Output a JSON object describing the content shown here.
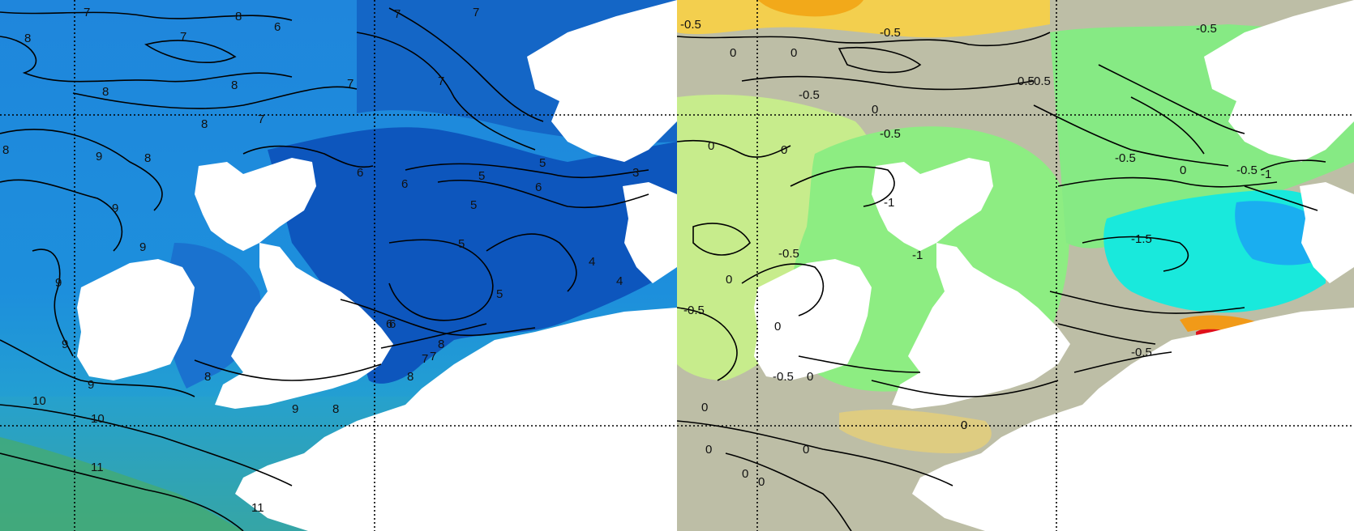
{
  "left_panel": {
    "colors": {
      "deep": "#0a4fb8",
      "mid": "#1f78d6",
      "light": "#2a9de0",
      "warm": "#3aa88a",
      "land": "#ffffff"
    },
    "contour_labels": [
      "7",
      "8",
      "8",
      "7",
      "6",
      "7",
      "8",
      "7",
      "7",
      "8",
      "8",
      "7",
      "8",
      "9",
      "8",
      "9",
      "9",
      "9",
      "7",
      "6",
      "6",
      "5",
      "5",
      "6",
      "4",
      "3",
      "5",
      "5",
      "4",
      "5",
      "6",
      "7",
      "8",
      "9",
      "8",
      "10",
      "11",
      "11",
      "8",
      "9",
      "6",
      "7",
      "8",
      "9",
      "10"
    ]
  },
  "right_panel": {
    "colors": {
      "gray": "#bfc0a8",
      "lightgreen": "#b6ec7a",
      "green": "#7ee57a",
      "cyan": "#13e8e0",
      "blue": "#1ab0ef",
      "yellow": "#f4c84a",
      "orange": "#f4a11a",
      "red": "#e0101a",
      "land": "#ffffff"
    },
    "contour_labels": [
      "-0.5",
      "0",
      "0",
      "-0.5",
      "0.5",
      "-0.5",
      "0",
      "0",
      "-0.5",
      "0",
      "-0.5",
      "0",
      "-1",
      "-0.5",
      "0",
      "-0.5",
      "0",
      "-0.5",
      "-1.5",
      "0",
      "0.5",
      "0",
      "-0.5",
      "0",
      "-1",
      "-0.5",
      "-0.5",
      "0",
      "0",
      "0",
      "0",
      "-1"
    ]
  }
}
